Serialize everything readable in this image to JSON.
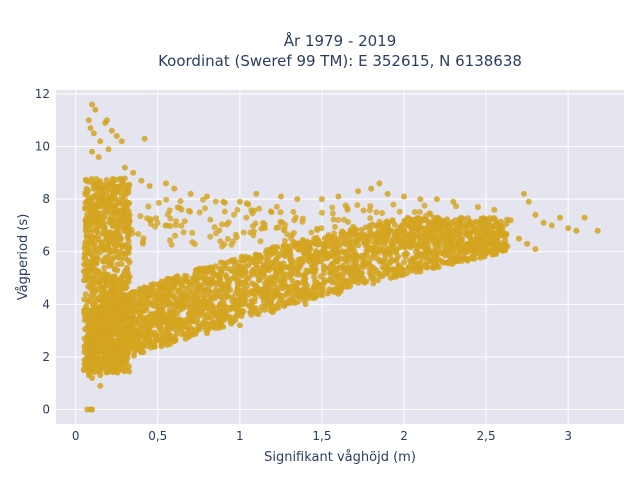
{
  "chart_data": {
    "type": "scatter",
    "title_line1": "År 1979 - 2019",
    "title_line2": "Koordinat (Sweref 99 TM): E 352615, N 6138638",
    "xlabel": "Signifikant våghöjd (m)",
    "ylabel": "Vågperiod (s)",
    "xlim": [
      -0.12,
      3.34
    ],
    "ylim": [
      -0.55,
      12.15
    ],
    "x_ticks": [
      0,
      0.5,
      1,
      1.5,
      2,
      2.5,
      3
    ],
    "x_tick_labels": [
      "0",
      "0,5",
      "1",
      "1,5",
      "2",
      "2,5",
      "3"
    ],
    "y_ticks": [
      0,
      2,
      4,
      6,
      8,
      10,
      12
    ],
    "y_tick_labels": [
      "0",
      "2",
      "4",
      "6",
      "8",
      "10",
      "12"
    ],
    "grid": true,
    "marker_color": "#D4A520",
    "plot_bg": "#E5E5EF",
    "series": [
      {
        "values": [
          [
            0.05,
            1.5
          ],
          [
            0.06,
            1.7
          ],
          [
            0.07,
            2.0
          ],
          [
            0.08,
            1.3
          ],
          [
            0.07,
            0.0
          ],
          [
            0.09,
            0.0
          ],
          [
            0.1,
            0.0
          ],
          [
            0.08,
            11.0
          ],
          [
            0.1,
            11.6
          ],
          [
            0.12,
            11.4
          ],
          [
            0.09,
            10.7
          ],
          [
            0.11,
            10.5
          ],
          [
            0.15,
            10.2
          ],
          [
            0.18,
            10.9
          ],
          [
            0.19,
            11.0
          ],
          [
            0.22,
            10.6
          ],
          [
            0.25,
            10.4
          ],
          [
            0.28,
            10.2
          ],
          [
            0.42,
            10.3
          ],
          [
            0.1,
            9.8
          ],
          [
            0.14,
            9.6
          ],
          [
            0.2,
            9.9
          ],
          [
            0.3,
            9.2
          ],
          [
            0.35,
            9.0
          ],
          [
            0.4,
            8.7
          ],
          [
            0.45,
            8.5
          ],
          [
            0.55,
            8.6
          ],
          [
            0.6,
            8.4
          ],
          [
            0.7,
            8.2
          ],
          [
            0.8,
            8.1
          ],
          [
            0.9,
            7.9
          ],
          [
            1.0,
            7.9
          ],
          [
            1.05,
            7.8
          ],
          [
            1.1,
            8.2
          ],
          [
            1.25,
            8.1
          ],
          [
            1.35,
            8.0
          ],
          [
            1.5,
            8.0
          ],
          [
            1.6,
            8.1
          ],
          [
            1.72,
            8.3
          ],
          [
            1.8,
            8.4
          ],
          [
            1.85,
            8.6
          ],
          [
            1.9,
            8.2
          ],
          [
            2.0,
            8.1
          ],
          [
            2.1,
            8.0
          ],
          [
            2.2,
            8.0
          ],
          [
            2.3,
            7.9
          ],
          [
            2.45,
            7.7
          ],
          [
            2.55,
            7.6
          ],
          [
            2.65,
            7.2
          ],
          [
            2.73,
            8.2
          ],
          [
            2.76,
            7.9
          ],
          [
            2.8,
            7.4
          ],
          [
            2.85,
            7.1
          ],
          [
            2.9,
            7.0
          ],
          [
            2.95,
            7.3
          ],
          [
            3.0,
            6.9
          ],
          [
            3.05,
            6.8
          ],
          [
            3.1,
            7.3
          ],
          [
            3.18,
            6.8
          ],
          [
            2.4,
            7.1
          ],
          [
            2.35,
            6.5
          ],
          [
            2.3,
            6.2
          ],
          [
            2.55,
            6.7
          ],
          [
            2.7,
            6.5
          ],
          [
            2.75,
            6.3
          ],
          [
            2.8,
            6.1
          ],
          [
            2.2,
            5.9
          ],
          [
            2.0,
            5.6
          ],
          [
            1.8,
            5.0
          ],
          [
            1.6,
            4.4
          ],
          [
            1.4,
            4.0
          ],
          [
            1.2,
            3.7
          ],
          [
            1.0,
            3.2
          ],
          [
            0.8,
            2.9
          ],
          [
            0.6,
            2.6
          ],
          [
            0.4,
            2.2
          ],
          [
            0.3,
            1.9
          ],
          [
            0.2,
            1.6
          ],
          [
            0.15,
            1.3
          ],
          [
            0.1,
            1.2
          ],
          [
            0.15,
            0.9
          ]
        ]
      }
    ]
  }
}
